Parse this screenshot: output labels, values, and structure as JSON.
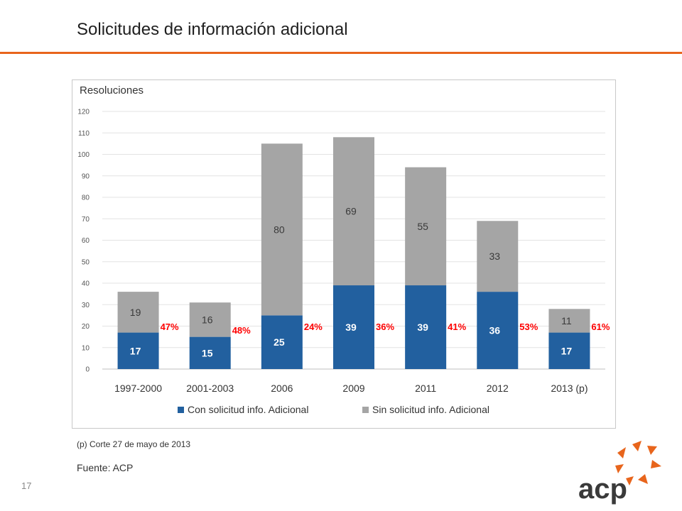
{
  "slide": {
    "title": "Solicitudes de información adicional",
    "note": "(p) Corte 27 de mayo de 2013",
    "source": "Fuente: ACP",
    "page_number": "17",
    "logo_text": "acp"
  },
  "colors": {
    "accent": "#e8651c",
    "series_con": "#22609f",
    "series_sin": "#a5a5a5",
    "pct_label": "#ff0000"
  },
  "chart_data": {
    "type": "bar",
    "stacked": true,
    "title": "Resoluciones",
    "xlabel": "",
    "ylabel": "",
    "ylim": [
      0,
      120
    ],
    "yticks": [
      0,
      10,
      20,
      30,
      40,
      50,
      60,
      70,
      80,
      90,
      100,
      110,
      120
    ],
    "grid": true,
    "legend": "bottom",
    "categories": [
      "1997-2000",
      "2001-2003",
      "2006",
      "2009",
      "2011",
      "2012",
      "2013 (p)"
    ],
    "series": [
      {
        "name": "Con solicitud info. Adicional",
        "values": [
          17,
          15,
          25,
          39,
          39,
          36,
          17
        ]
      },
      {
        "name": "Sin solicitud info. Adicional",
        "values": [
          19,
          16,
          80,
          69,
          55,
          33,
          11
        ]
      }
    ],
    "percent_labels": [
      "47%",
      "48%",
      "24%",
      "36%",
      "41%",
      "53%",
      "61%"
    ]
  }
}
